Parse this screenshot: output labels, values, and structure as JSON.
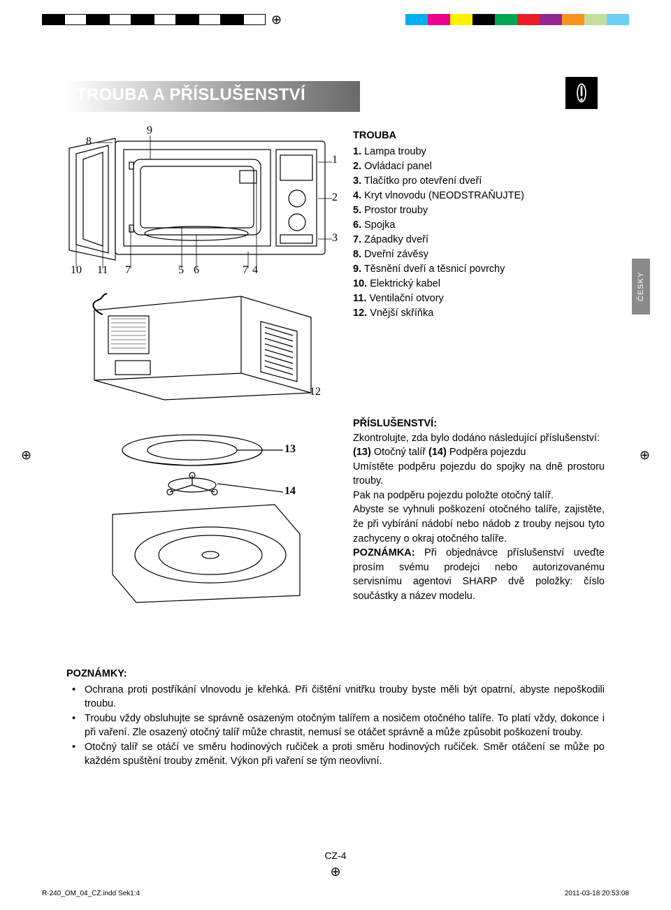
{
  "page": {
    "title": "TROUBA A PŘÍSLUŠENSTVÍ",
    "side_tab": "ČESKY",
    "page_number": "CZ-4",
    "footer_file": "R-240_OM_04_CZ.indd   Sek1:4",
    "footer_stamp": "2011-03-18   20:53:08"
  },
  "colors": {
    "header_text": "#ffffff",
    "icon_bg": "#000000",
    "side_tab_bg": "#8a8a8a",
    "text": "#000000",
    "gradient_start": "#ffffff",
    "gradient_end": "#6a6a6a",
    "print_bw": [
      "#000000",
      "#ffffff",
      "#000000",
      "#ffffff",
      "#000000",
      "#ffffff",
      "#000000",
      "#ffffff",
      "#000000",
      "#ffffff"
    ],
    "print_color": [
      "#00aeef",
      "#ec008c",
      "#fff200",
      "#000000",
      "#00a651",
      "#ed1c24",
      "#92278f",
      "#f7941d",
      "#c4df9b",
      "#6dcff6"
    ]
  },
  "parts": {
    "heading": "TROUBA",
    "items": [
      "1.  Lampa trouby",
      "2.  Ovládací panel",
      "3.  Tlačítko pro otevření dveří",
      "4.  Kryt vlnovodu (NEODSTRAŇUJTE)",
      "5.  Prostor trouby",
      "6.  Spojka",
      "7.  Západky dveří",
      "8.  Dveřní závěsy",
      "9.  Těsnění dveří a těsnicí povrchy",
      "10. Elektrický kabel",
      "11. Ventilační otvory",
      "12. Vnější skříňka"
    ]
  },
  "callouts_front": {
    "n1": "1",
    "n2": "2",
    "n3": "3",
    "n4": "4",
    "n5": "5",
    "n6": "6",
    "n7a": "7",
    "n7b": "7",
    "n8": "8",
    "n9": "9",
    "n10": "10",
    "n11": "11",
    "n12": "12",
    "n13": "13",
    "n14": "14"
  },
  "accessories": {
    "heading": "PŘÍSLUŠENSTVÍ:",
    "intro": "Zkontrolujte, zda bylo dodáno následující příslušenství:",
    "item_line": "(13) Otočný talíř (14) Podpěra pojezdu",
    "p1": "Umístěte podpěru pojezdu do spojky na dně prostoru trouby.",
    "p2": "Pak na podpěru pojezdu položte otočný talíř.",
    "p3": "Abyste se vyhnuli poškození otočného talíře, zajistěte, že při vybírání nádobí nebo nádob z trouby nejsou tyto zachyceny o okraj otočného talíře.",
    "note_label": "POZNÁMKA:",
    "note_body": " Při objednávce příslušenství uveďte prosím svému prodejci nebo autorizovanému servisnímu agentovi SHARP dvě položky: číslo součástky a název modelu."
  },
  "notes": {
    "heading": "POZNÁMKY:",
    "items": [
      "Ochrana proti postříkání vlnovodu je křehká. Při čištění vnitřku trouby byste měli být opatrní, abyste nepoškodili troubu.",
      "Troubu vždy obsluhujte se správně osazeným otočným talířem a nosičem otočného talíře. To platí vždy, dokonce i při vaření. Zle osazený otočný talíř může chrastit, nemusí se otáčet správně a může způsobit poškození trouby.",
      "Otočný talíř se otáčí ve směru hodinových ručiček a proti směru hodinových ručiček. Směr otáčení se může po každém spuštění trouby změnit. Výkon při vaření se tým neovlivní."
    ]
  }
}
